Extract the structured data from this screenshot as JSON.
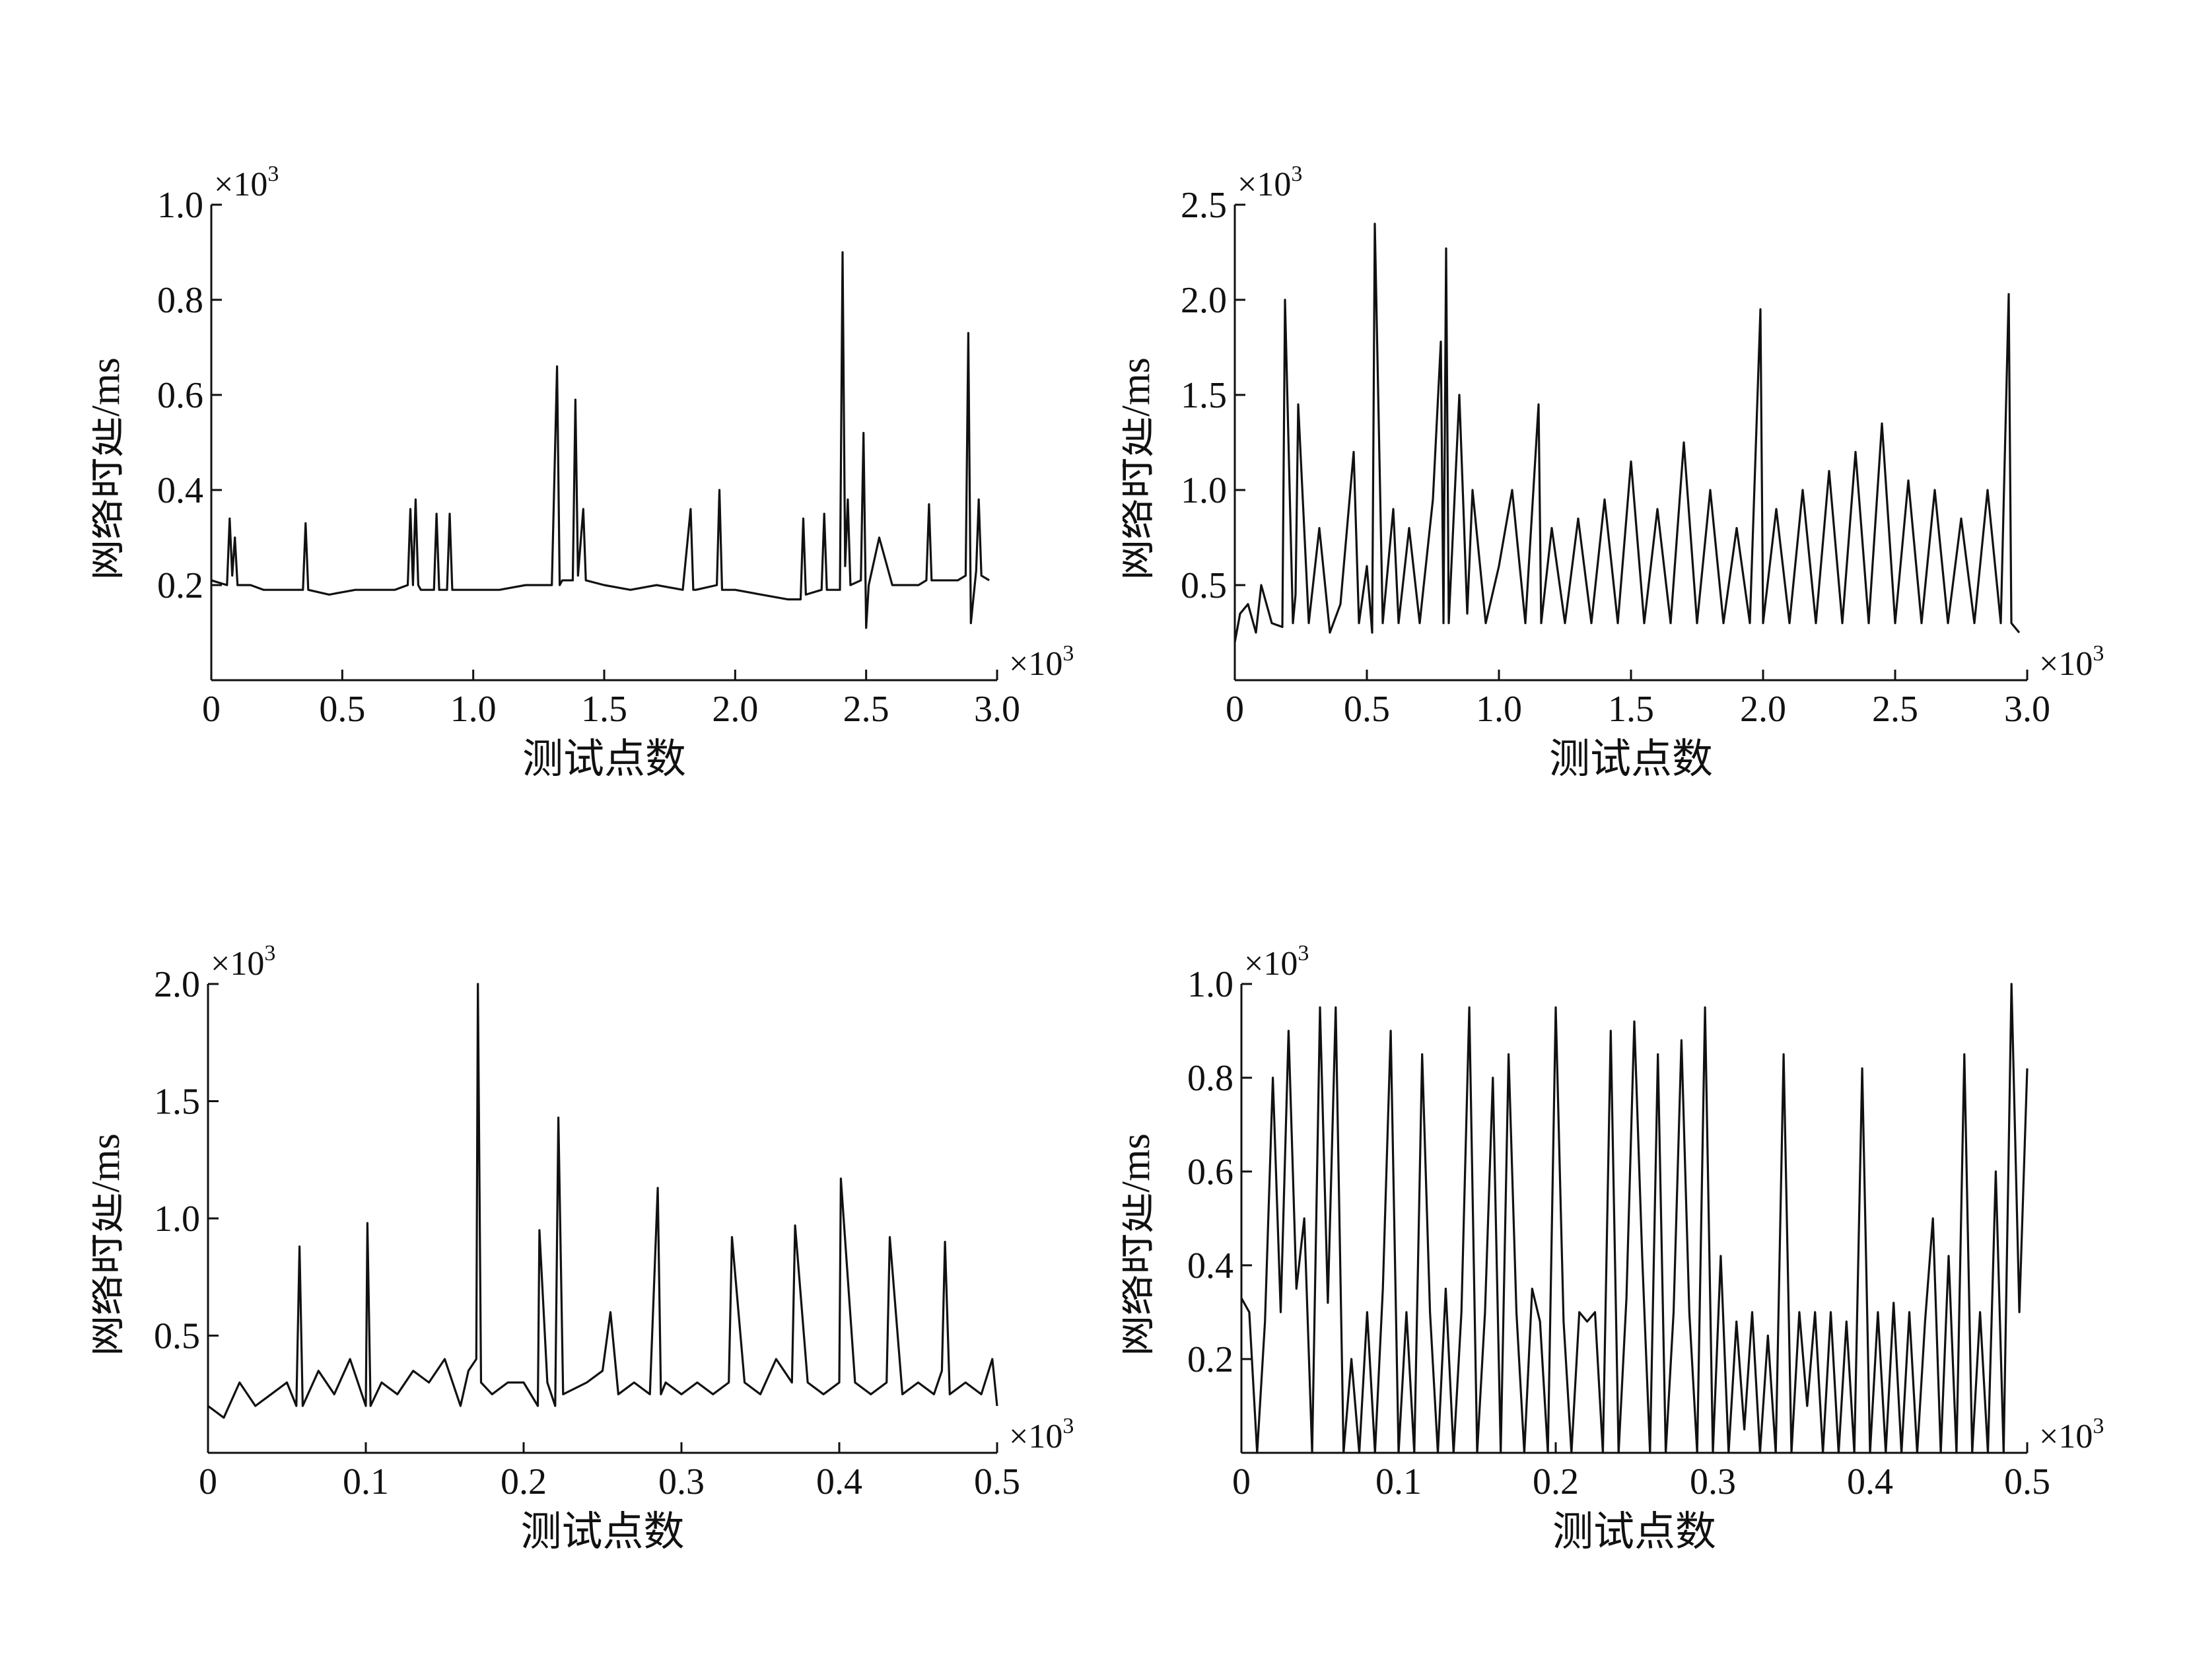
{
  "chart_data": [
    {
      "type": "line",
      "xlabel": "测试点数",
      "ylabel": "网络时延/ms",
      "x_exponent_label": "×10",
      "x_exponent_power": "3",
      "y_exponent_label": "×10",
      "y_exponent_power": "3",
      "xlim": [
        0,
        3.0
      ],
      "ylim": [
        0,
        1.0
      ],
      "xticks": [
        0,
        0.5,
        1.0,
        1.5,
        2.0,
        2.5,
        3.0
      ],
      "xtick_labels": [
        "0",
        "0.5",
        "1.0",
        "1.5",
        "2.0",
        "2.5",
        "3.0"
      ],
      "yticks": [
        0.2,
        0.4,
        0.6,
        0.8,
        1.0
      ],
      "ytick_labels": [
        "0.2",
        "0.4",
        "0.6",
        "0.8",
        "1.0"
      ],
      "grid": false,
      "series": [
        {
          "x": [
            0.0,
            0.06,
            0.07,
            0.08,
            0.09,
            0.1,
            0.15,
            0.2,
            0.3,
            0.35,
            0.36,
            0.37,
            0.45,
            0.55,
            0.6,
            0.7,
            0.75,
            0.76,
            0.77,
            0.78,
            0.79,
            0.8,
            0.85,
            0.86,
            0.87,
            0.9,
            0.91,
            0.92,
            1.0,
            1.1,
            1.2,
            1.3,
            1.32,
            1.33,
            1.34,
            1.38,
            1.39,
            1.4,
            1.42,
            1.43,
            1.5,
            1.6,
            1.7,
            1.8,
            1.83,
            1.84,
            1.85,
            1.93,
            1.94,
            1.95,
            2.0,
            2.1,
            2.2,
            2.25,
            2.26,
            2.27,
            2.33,
            2.34,
            2.35,
            2.4,
            2.41,
            2.42,
            2.43,
            2.44,
            2.48,
            2.49,
            2.5,
            2.51,
            2.55,
            2.6,
            2.7,
            2.73,
            2.74,
            2.75,
            2.85,
            2.88,
            2.89,
            2.9,
            2.92,
            2.93,
            2.94,
            2.97
          ],
          "y": [
            0.21,
            0.2,
            0.34,
            0.22,
            0.3,
            0.2,
            0.2,
            0.19,
            0.19,
            0.19,
            0.33,
            0.19,
            0.18,
            0.19,
            0.19,
            0.19,
            0.2,
            0.36,
            0.2,
            0.38,
            0.2,
            0.19,
            0.19,
            0.35,
            0.19,
            0.19,
            0.35,
            0.19,
            0.19,
            0.19,
            0.2,
            0.2,
            0.66,
            0.2,
            0.21,
            0.21,
            0.59,
            0.22,
            0.36,
            0.21,
            0.2,
            0.19,
            0.2,
            0.19,
            0.36,
            0.19,
            0.19,
            0.2,
            0.4,
            0.19,
            0.19,
            0.18,
            0.17,
            0.17,
            0.34,
            0.18,
            0.19,
            0.35,
            0.19,
            0.19,
            0.9,
            0.24,
            0.38,
            0.2,
            0.21,
            0.52,
            0.11,
            0.2,
            0.3,
            0.2,
            0.2,
            0.21,
            0.37,
            0.21,
            0.21,
            0.22,
            0.73,
            0.12,
            0.23,
            0.38,
            0.22,
            0.21
          ]
        }
      ]
    },
    {
      "type": "line",
      "xlabel": "测试点数",
      "ylabel": "网络时延/ms",
      "x_exponent_label": "×10",
      "x_exponent_power": "3",
      "y_exponent_label": "×10",
      "y_exponent_power": "3",
      "xlim": [
        0,
        3.0
      ],
      "ylim": [
        0,
        2.5
      ],
      "xticks": [
        0,
        0.5,
        1.0,
        1.5,
        2.0,
        2.5,
        3.0
      ],
      "xtick_labels": [
        "0",
        "0.5",
        "1.0",
        "1.5",
        "2.0",
        "2.5",
        "3.0"
      ],
      "yticks": [
        0.5,
        1.0,
        1.5,
        2.0,
        2.5
      ],
      "ytick_labels": [
        "0.5",
        "1.0",
        "1.5",
        "2.0",
        "2.5"
      ],
      "grid": false,
      "series": [
        {
          "x": [
            0.0,
            0.02,
            0.05,
            0.08,
            0.1,
            0.14,
            0.18,
            0.19,
            0.22,
            0.23,
            0.24,
            0.28,
            0.32,
            0.36,
            0.4,
            0.45,
            0.47,
            0.5,
            0.52,
            0.53,
            0.56,
            0.6,
            0.62,
            0.66,
            0.7,
            0.75,
            0.78,
            0.79,
            0.8,
            0.81,
            0.85,
            0.88,
            0.9,
            0.95,
            1.0,
            1.05,
            1.1,
            1.15,
            1.16,
            1.2,
            1.25,
            1.3,
            1.35,
            1.4,
            1.45,
            1.5,
            1.55,
            1.6,
            1.65,
            1.7,
            1.75,
            1.8,
            1.85,
            1.9,
            1.95,
            1.99,
            2.0,
            2.05,
            2.1,
            2.15,
            2.2,
            2.25,
            2.3,
            2.35,
            2.4,
            2.45,
            2.5,
            2.55,
            2.6,
            2.65,
            2.7,
            2.75,
            2.8,
            2.85,
            2.9,
            2.93,
            2.94,
            2.97
          ],
          "y": [
            0.2,
            0.35,
            0.4,
            0.25,
            0.5,
            0.3,
            0.28,
            2.0,
            0.3,
            0.45,
            1.45,
            0.3,
            0.8,
            0.25,
            0.4,
            1.2,
            0.3,
            0.6,
            0.25,
            2.4,
            0.3,
            0.9,
            0.3,
            0.8,
            0.3,
            0.95,
            1.78,
            0.3,
            2.27,
            0.3,
            1.5,
            0.35,
            1.0,
            0.3,
            0.6,
            1.0,
            0.3,
            1.45,
            0.3,
            0.8,
            0.3,
            0.85,
            0.3,
            0.95,
            0.3,
            1.15,
            0.3,
            0.9,
            0.3,
            1.25,
            0.3,
            1.0,
            0.3,
            0.8,
            0.3,
            1.95,
            0.3,
            0.9,
            0.3,
            1.0,
            0.3,
            1.1,
            0.3,
            1.2,
            0.3,
            1.35,
            0.3,
            1.05,
            0.3,
            1.0,
            0.3,
            0.85,
            0.3,
            1.0,
            0.3,
            2.03,
            0.3,
            0.25
          ]
        }
      ]
    },
    {
      "type": "line",
      "xlabel": "测试点数",
      "ylabel": "网络时延/ms",
      "x_exponent_label": "×10",
      "x_exponent_power": "3",
      "y_exponent_label": "×10",
      "y_exponent_power": "3",
      "xlim": [
        0,
        0.5
      ],
      "ylim": [
        0,
        2.0
      ],
      "xticks": [
        0,
        0.1,
        0.2,
        0.3,
        0.4,
        0.5
      ],
      "xtick_labels": [
        "0",
        "0.1",
        "0.2",
        "0.3",
        "0.4",
        "0.5"
      ],
      "yticks": [
        0.5,
        1.0,
        1.5,
        2.0
      ],
      "ytick_labels": [
        "0.5",
        "1.0",
        "1.5",
        "2.0"
      ],
      "grid": false,
      "series": [
        {
          "x": [
            0.0,
            0.01,
            0.02,
            0.03,
            0.04,
            0.05,
            0.056,
            0.058,
            0.06,
            0.07,
            0.08,
            0.09,
            0.1,
            0.101,
            0.103,
            0.11,
            0.12,
            0.13,
            0.14,
            0.15,
            0.16,
            0.165,
            0.17,
            0.171,
            0.173,
            0.18,
            0.19,
            0.2,
            0.209,
            0.21,
            0.215,
            0.22,
            0.222,
            0.225,
            0.24,
            0.25,
            0.255,
            0.26,
            0.27,
            0.28,
            0.285,
            0.287,
            0.29,
            0.3,
            0.31,
            0.32,
            0.33,
            0.332,
            0.34,
            0.35,
            0.36,
            0.37,
            0.372,
            0.38,
            0.39,
            0.4,
            0.401,
            0.41,
            0.42,
            0.43,
            0.432,
            0.44,
            0.45,
            0.46,
            0.465,
            0.467,
            0.47,
            0.48,
            0.49,
            0.497,
            0.5
          ],
          "y": [
            0.2,
            0.15,
            0.3,
            0.2,
            0.25,
            0.3,
            0.2,
            0.88,
            0.2,
            0.35,
            0.25,
            0.4,
            0.2,
            0.98,
            0.2,
            0.3,
            0.25,
            0.35,
            0.3,
            0.4,
            0.2,
            0.35,
            0.4,
            2.0,
            0.3,
            0.25,
            0.3,
            0.3,
            0.2,
            0.95,
            0.3,
            0.2,
            1.43,
            0.25,
            0.3,
            0.35,
            0.6,
            0.25,
            0.3,
            0.25,
            1.13,
            0.25,
            0.3,
            0.25,
            0.3,
            0.25,
            0.3,
            0.92,
            0.3,
            0.25,
            0.4,
            0.3,
            0.97,
            0.3,
            0.25,
            0.3,
            1.17,
            0.3,
            0.25,
            0.3,
            0.92,
            0.25,
            0.3,
            0.25,
            0.35,
            0.9,
            0.25,
            0.3,
            0.25,
            0.4,
            0.2
          ]
        }
      ]
    },
    {
      "type": "line",
      "xlabel": "测试点数",
      "ylabel": "网络时延/ms",
      "x_exponent_label": "×10",
      "x_exponent_power": "3",
      "y_exponent_label": "×10",
      "y_exponent_power": "3",
      "xlim": [
        0,
        0.5
      ],
      "ylim": [
        0,
        1.0
      ],
      "xticks": [
        0,
        0.1,
        0.2,
        0.3,
        0.4,
        0.5
      ],
      "xtick_labels": [
        "0",
        "0.1",
        "0.2",
        "0.3",
        "0.4",
        "0.5"
      ],
      "yticks": [
        0.2,
        0.4,
        0.6,
        0.8,
        1.0
      ],
      "ytick_labels": [
        "0.2",
        "0.4",
        "0.6",
        "0.8",
        "1.0"
      ],
      "grid": false,
      "series": [
        {
          "x": [
            0.0,
            0.005,
            0.01,
            0.015,
            0.02,
            0.025,
            0.03,
            0.035,
            0.04,
            0.045,
            0.05,
            0.055,
            0.06,
            0.065,
            0.07,
            0.075,
            0.08,
            0.085,
            0.09,
            0.095,
            0.1,
            0.105,
            0.11,
            0.115,
            0.12,
            0.125,
            0.13,
            0.135,
            0.14,
            0.145,
            0.15,
            0.155,
            0.16,
            0.165,
            0.17,
            0.175,
            0.18,
            0.185,
            0.19,
            0.195,
            0.2,
            0.205,
            0.21,
            0.215,
            0.22,
            0.225,
            0.23,
            0.235,
            0.24,
            0.245,
            0.25,
            0.255,
            0.26,
            0.265,
            0.27,
            0.275,
            0.28,
            0.285,
            0.29,
            0.295,
            0.3,
            0.305,
            0.31,
            0.315,
            0.32,
            0.325,
            0.33,
            0.335,
            0.34,
            0.345,
            0.35,
            0.355,
            0.36,
            0.365,
            0.37,
            0.375,
            0.38,
            0.385,
            0.39,
            0.395,
            0.4,
            0.405,
            0.41,
            0.415,
            0.42,
            0.425,
            0.43,
            0.435,
            0.44,
            0.445,
            0.45,
            0.455,
            0.46,
            0.465,
            0.47,
            0.475,
            0.48,
            0.485,
            0.49,
            0.495,
            0.5
          ],
          "y": [
            0.33,
            0.3,
            0.0,
            0.28,
            0.8,
            0.3,
            0.9,
            0.35,
            0.5,
            0.0,
            0.95,
            0.32,
            0.95,
            0.0,
            0.2,
            0.0,
            0.3,
            0.0,
            0.35,
            0.9,
            0.0,
            0.3,
            0.0,
            0.85,
            0.3,
            0.0,
            0.35,
            0.0,
            0.3,
            0.95,
            0.0,
            0.3,
            0.8,
            0.0,
            0.85,
            0.3,
            0.0,
            0.35,
            0.28,
            0.0,
            0.95,
            0.28,
            0.0,
            0.3,
            0.28,
            0.3,
            0.0,
            0.9,
            0.0,
            0.33,
            0.92,
            0.42,
            0.0,
            0.85,
            0.0,
            0.3,
            0.88,
            0.3,
            0.0,
            0.95,
            0.0,
            0.42,
            0.0,
            0.28,
            0.05,
            0.3,
            0.0,
            0.25,
            0.0,
            0.85,
            0.0,
            0.3,
            0.1,
            0.3,
            0.0,
            0.3,
            0.0,
            0.28,
            0.0,
            0.82,
            0.0,
            0.3,
            0.0,
            0.32,
            0.0,
            0.3,
            0.0,
            0.28,
            0.5,
            0.0,
            0.42,
            0.0,
            0.85,
            0.0,
            0.3,
            0.0,
            0.6,
            0.0,
            1.0,
            0.3,
            0.82
          ]
        }
      ]
    }
  ]
}
